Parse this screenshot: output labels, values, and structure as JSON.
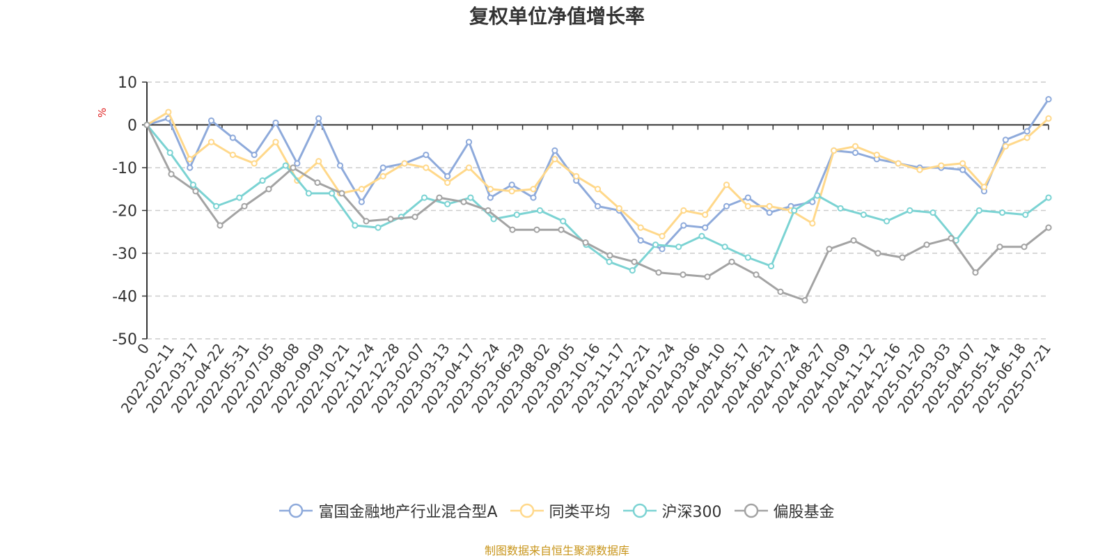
{
  "chart_data": {
    "type": "line",
    "title": "复权单位净值增长率",
    "ylabel": "%",
    "ylim": [
      -50,
      10
    ],
    "yticks": [
      10,
      0,
      -10,
      -20,
      -30,
      -40,
      -50
    ],
    "xticks": [
      "0",
      "2022-02-11",
      "2022-03-17",
      "2022-04-22",
      "2022-05-31",
      "2022-07-05",
      "2022-08-08",
      "2022-09-09",
      "2022-10-21",
      "2022-11-24",
      "2022-12-28",
      "2023-02-07",
      "2023-03-13",
      "2023-04-17",
      "2023-05-24",
      "2023-06-29",
      "2023-08-02",
      "2023-09-05",
      "2023-10-16",
      "2023-11-17",
      "2023-12-21",
      "2024-01-24",
      "2024-03-06",
      "2024-04-10",
      "2024-05-17",
      "2024-06-21",
      "2024-07-24",
      "2024-08-27",
      "2024-10-09",
      "2024-11-12",
      "2024-12-16",
      "2025-01-20",
      "2025-03-03",
      "2025-04-07",
      "2025-05-14",
      "2025-06-18",
      "2025-07-21"
    ],
    "grid": true,
    "legend_position": "bottom",
    "series": [
      {
        "name": "富国金融地产行业混合型A",
        "color": "#8eaadb",
        "values": [
          0,
          1.5,
          -10,
          1,
          -3,
          -7,
          0.5,
          -9,
          1.5,
          -9.5,
          -18,
          -10,
          -9,
          -7,
          -12,
          -4,
          -17,
          -14,
          -17,
          -6,
          -13,
          -19,
          -20,
          -27,
          -29,
          -23.5,
          -24,
          -19,
          -17,
          -20.5,
          -19,
          -18,
          -6,
          -6.5,
          -8,
          -9,
          -10,
          -10,
          -10.5,
          -15.5,
          -3.5,
          -1.5,
          6
        ]
      },
      {
        "name": "同类平均",
        "color": "#ffd88a",
        "values": [
          0,
          3,
          -8,
          -4,
          -7,
          -9,
          -4,
          -13,
          -8.5,
          -16,
          -15,
          -12,
          -9,
          -10,
          -13.5,
          -10,
          -15,
          -15.5,
          -15,
          -8,
          -12,
          -15,
          -19.5,
          -24,
          -26,
          -20,
          -21,
          -14,
          -19,
          -19,
          -20,
          -23,
          -6,
          -5,
          -7,
          -9,
          -10.5,
          -9.5,
          -9,
          -14.5,
          -5,
          -3,
          1.5
        ]
      },
      {
        "name": "沪深300",
        "color": "#7bd3d3",
        "values": [
          0,
          -6.5,
          -14,
          -19,
          -17,
          -13,
          -9.5,
          -16,
          -16,
          -23.5,
          -24,
          -21.5,
          -17,
          -18.5,
          -17,
          -22,
          -21,
          -20,
          -22.5,
          -28,
          -32,
          -34,
          -28,
          -28.5,
          -26,
          -28.5,
          -31,
          -33,
          -20,
          -16.5,
          -19.5,
          -21,
          -22.5,
          -20,
          -20.5,
          -27,
          -20,
          -20.5,
          -21,
          -17
        ]
      },
      {
        "name": "偏股基金",
        "color": "#a3a3a3",
        "values": [
          0,
          -11.5,
          -15.5,
          -23.5,
          -19,
          -15,
          -10,
          -13.5,
          -16,
          -22.5,
          -22,
          -21.5,
          -17,
          -18,
          -20,
          -24.5,
          -24.5,
          -24.5,
          -27.5,
          -30.5,
          -32,
          -34.5,
          -35,
          -35.5,
          -32,
          -35,
          -39,
          -41,
          -29,
          -27,
          -30,
          -31,
          -28,
          -26.5,
          -34.5,
          -28.5,
          -28.5,
          -24
        ]
      }
    ]
  },
  "source_note": "制图数据来自恒生聚源数据库"
}
